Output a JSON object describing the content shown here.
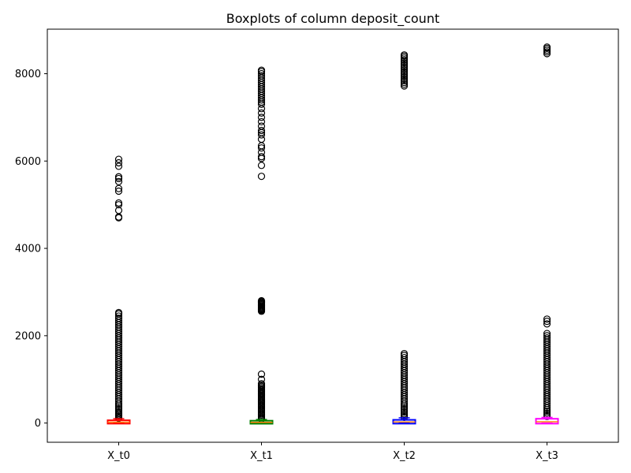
{
  "chart_data": {
    "type": "boxplot",
    "title": "Boxplots of column deposit_count",
    "xlabel": "",
    "ylabel": "",
    "ylim": [
      -440,
      9020
    ],
    "yticks": [
      0,
      2000,
      4000,
      6000,
      8000
    ],
    "grid": false,
    "categories": [
      "X_t0",
      "X_t1",
      "X_t2",
      "X_t3"
    ],
    "boxes": [
      {
        "category": "X_t0",
        "color": "#ff0000",
        "q1": 5,
        "median": 20,
        "q3": 45,
        "whisker_low": 0,
        "whisker_high": 100,
        "outliers": [
          110,
          130,
          160,
          190,
          220,
          250,
          290,
          330,
          370,
          410,
          450,
          500,
          550,
          600,
          650,
          700,
          750,
          800,
          850,
          900,
          950,
          1000,
          1050,
          1100,
          1150,
          1200,
          1250,
          1300,
          1350,
          1400,
          1450,
          1500,
          1550,
          1600,
          1650,
          1700,
          1750,
          1800,
          1850,
          1900,
          1950,
          2000,
          2050,
          2100,
          2150,
          2200,
          2250,
          2300,
          2350,
          2400,
          2450,
          2500,
          2530,
          4700,
          4720,
          4870,
          5000,
          5040,
          5310,
          5370,
          5530,
          5600,
          5640,
          5880,
          5960,
          6040
        ]
      },
      {
        "category": "X_t1",
        "color": "#008000",
        "q1": 3,
        "median": 15,
        "q3": 35,
        "whisker_low": 0,
        "whisker_high": 80,
        "outliers": [
          90,
          120,
          150,
          180,
          210,
          240,
          270,
          300,
          330,
          360,
          390,
          420,
          450,
          480,
          510,
          540,
          570,
          600,
          630,
          660,
          690,
          720,
          750,
          780,
          810,
          840,
          870,
          900,
          1000,
          1120,
          2560,
          2580,
          2600,
          2620,
          2640,
          2660,
          2680,
          2700,
          2720,
          2740,
          2760,
          2780,
          2800,
          5650,
          5900,
          6060,
          6100,
          6200,
          6300,
          6350,
          6500,
          6600,
          6650,
          6700,
          6800,
          6900,
          7000,
          7100,
          7200,
          7300,
          7350,
          7400,
          7450,
          7500,
          7550,
          7600,
          7650,
          7700,
          7750,
          7800,
          7850,
          7900,
          7950,
          8000,
          8050,
          8080
        ]
      },
      {
        "category": "X_t2",
        "color": "#0000ff",
        "q1": 5,
        "median": 25,
        "q3": 55,
        "whisker_low": 0,
        "whisker_high": 120,
        "outliers": [
          130,
          170,
          210,
          250,
          290,
          330,
          370,
          410,
          450,
          500,
          550,
          600,
          650,
          700,
          750,
          800,
          850,
          900,
          950,
          1000,
          1050,
          1100,
          1150,
          1200,
          1250,
          1300,
          1350,
          1400,
          1450,
          1500,
          1550,
          1590,
          7720,
          7760,
          7800,
          7840,
          7880,
          7920,
          7960,
          8000,
          8040,
          8080,
          8120,
          8160,
          8200,
          8240,
          8280,
          8320,
          8360,
          8400,
          8430
        ]
      },
      {
        "category": "X_t3",
        "color": "#ff00ff",
        "q1": 5,
        "median": 30,
        "q3": 80,
        "whisker_low": 0,
        "whisker_high": 130,
        "outliers": [
          150,
          190,
          230,
          270,
          310,
          350,
          400,
          450,
          500,
          550,
          600,
          650,
          700,
          750,
          800,
          850,
          900,
          950,
          1000,
          1050,
          1100,
          1150,
          1200,
          1250,
          1300,
          1350,
          1400,
          1450,
          1500,
          1550,
          1600,
          1650,
          1700,
          1750,
          1800,
          1850,
          1900,
          1950,
          2000,
          2050,
          2270,
          2330,
          2380,
          8460,
          8500,
          8540,
          8580,
          8610
        ]
      }
    ]
  }
}
